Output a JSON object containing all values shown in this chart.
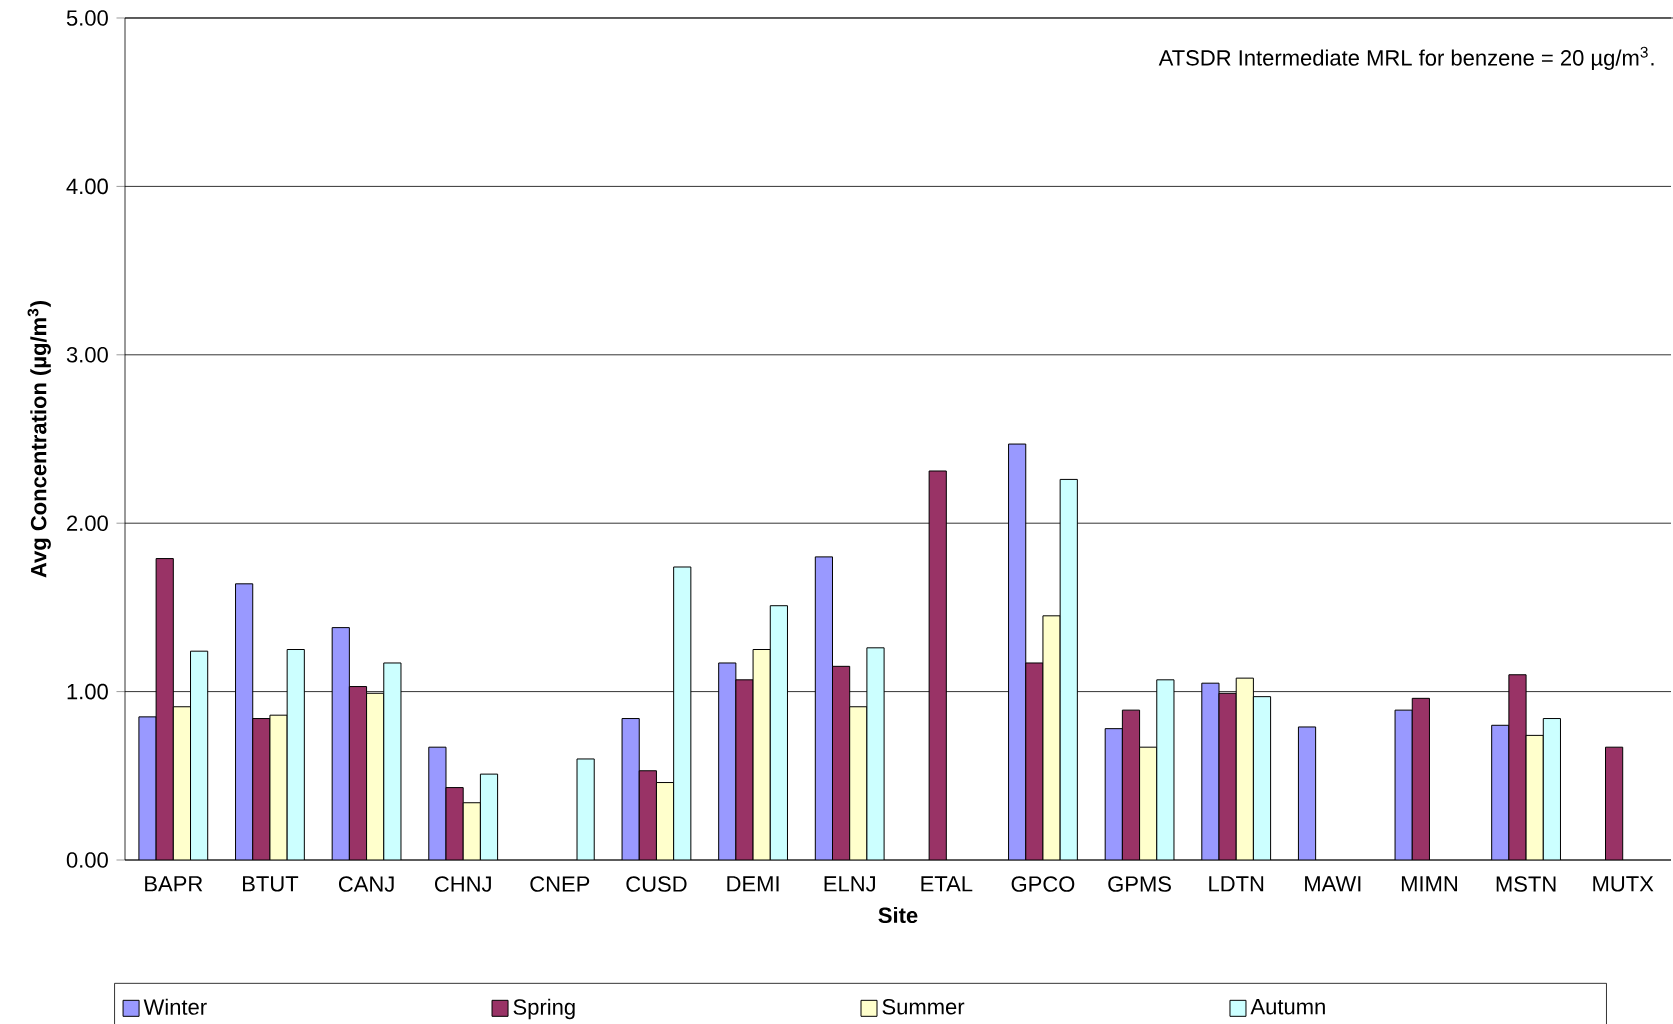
{
  "chart_data": {
    "type": "bar",
    "xlabel": "Site",
    "ylabel": "Avg Concentration (µg/m$^{3}$)",
    "categories": [
      "BAPR",
      "BTUT",
      "CANJ",
      "CHNJ",
      "CNEP",
      "CUSD",
      "DEMI",
      "ELNJ",
      "ETAL",
      "GPCO",
      "GPMS",
      "LDTN",
      "MAWI",
      "MIMN",
      "MSTN",
      "MUTX"
    ],
    "series": [
      {
        "name": "Winter",
        "color": "#9999ff",
        "values": [
          0.85,
          1.64,
          1.38,
          0.67,
          null,
          0.84,
          1.17,
          1.8,
          null,
          2.47,
          0.78,
          1.05,
          0.79,
          0.89,
          0.8,
          null
        ]
      },
      {
        "name": "Spring",
        "color": "#993366",
        "values": [
          1.79,
          0.84,
          1.03,
          0.43,
          null,
          0.53,
          1.07,
          1.15,
          2.31,
          1.17,
          0.89,
          0.99,
          null,
          0.96,
          1.1,
          0.67
        ]
      },
      {
        "name": "Summer",
        "color": "#ffffcc",
        "values": [
          0.91,
          0.86,
          0.99,
          0.34,
          null,
          0.46,
          1.25,
          0.91,
          null,
          1.45,
          0.67,
          1.08,
          null,
          null,
          0.74,
          null
        ]
      },
      {
        "name": "Autumn",
        "color": "#ccffff",
        "values": [
          1.24,
          1.25,
          1.17,
          0.51,
          0.6,
          1.74,
          1.51,
          1.26,
          null,
          2.26,
          1.07,
          0.97,
          null,
          null,
          0.84,
          null
        ]
      }
    ],
    "ylim": [
      0,
      5
    ],
    "yticks": [
      {
        "value": 0,
        "label": "0.00"
      },
      {
        "value": 1,
        "label": "1.00"
      },
      {
        "value": 2,
        "label": "2.00"
      },
      {
        "value": 3,
        "label": "3.00"
      },
      {
        "value": 4,
        "label": "4.00"
      },
      {
        "value": 5,
        "label": "5.00"
      }
    ],
    "grid": "y",
    "legend": "bottom",
    "annotations": [
      "ATSDR Intermediate MRL for benzene = 20 µg/m$^{3}$."
    ]
  }
}
